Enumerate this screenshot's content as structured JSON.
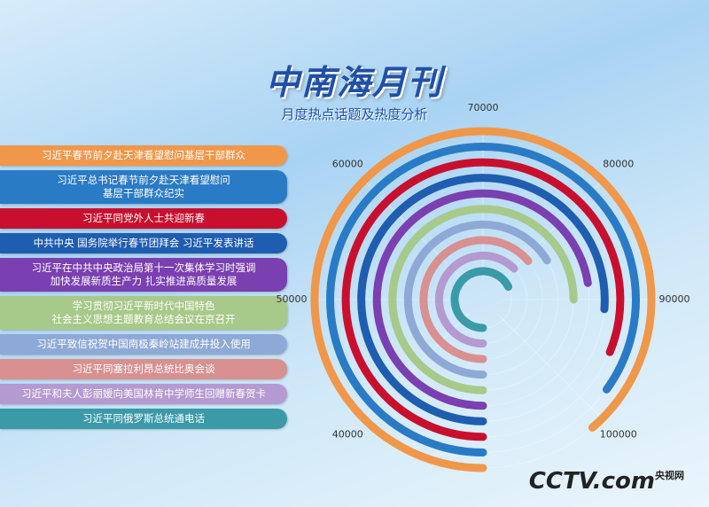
{
  "chart_data": {
    "type": "radial-bar",
    "title": "中南海月刊",
    "subtitle": "月度热点话题及热度分析",
    "categories": [
      "习近平春节前夕赴天津看望慰问基层干部群众",
      "习近平总书记春节前夕赴天津看望慰问\n基层干部群众纪实",
      "习近平同党外人士共迎新春",
      "中共中央 国务院举行春节团拜会 习近平发表讲话",
      "习近平在中共中央政治局第十一次集体学习时强调\n加快发展新质生产力 扎实推进高质量发展",
      "学习贯彻习近平新时代中国特色\n社会主义思想主题教育总结会议在京召开",
      "习近平致信祝贺中国南极秦岭站建成并投入使用",
      "习近平同塞拉利昂总统比奥会谈",
      "习近平和夫人彭丽媛向美国林肯中学师生回赠新春贺卡",
      "习近平同俄罗斯总统通电话"
    ],
    "values": [
      101000,
      98000,
      95000,
      91000,
      88000,
      90000,
      83000,
      81000,
      80000,
      84000
    ],
    "colors": [
      "#f0974a",
      "#2a7bc6",
      "#c8102e",
      "#1f5db0",
      "#7a3fb0",
      "#a7c98a",
      "#8fa9d6",
      "#d99090",
      "#b49ad0",
      "#3a9aa8"
    ],
    "ylim": [
      30000,
      110000
    ],
    "yticks": [
      40000,
      50000,
      60000,
      70000,
      80000,
      90000,
      100000
    ],
    "grid": true,
    "logo": "CCTV.com",
    "logo_sub": "央视网"
  }
}
